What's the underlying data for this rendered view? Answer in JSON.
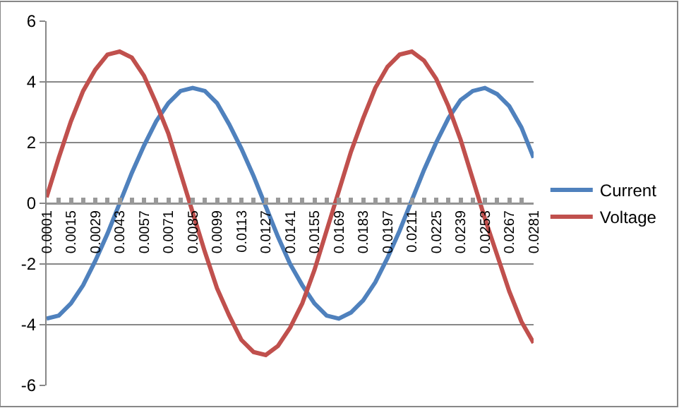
{
  "chart_data": {
    "type": "line",
    "categories": [
      "0.0001",
      null,
      "0.0015",
      null,
      "0.0029",
      null,
      "0.0043",
      null,
      "0.0057",
      null,
      "0.0071",
      null,
      "0.0085",
      null,
      "0.0099",
      null,
      "0.0113",
      null,
      "0.0127",
      null,
      "0.0141",
      null,
      "0.0155",
      null,
      "0.0169",
      null,
      "0.0183",
      null,
      "0.0197",
      null,
      "0.0211",
      null,
      "0.0225",
      null,
      "0.0239",
      null,
      "0.0253",
      null,
      "0.0267",
      null,
      "0.0281"
    ],
    "series": [
      {
        "name": "Current",
        "color": "#4f81bd",
        "values": [
          -3.8,
          -3.7,
          -3.3,
          -2.7,
          -1.9,
          -1.0,
          0.0,
          1.0,
          1.9,
          2.7,
          3.3,
          3.7,
          3.8,
          3.7,
          3.3,
          2.6,
          1.8,
          0.9,
          -0.1,
          -1.1,
          -2.0,
          -2.7,
          -3.3,
          -3.7,
          -3.8,
          -3.6,
          -3.2,
          -2.6,
          -1.8,
          -0.9,
          0.1,
          1.1,
          2.0,
          2.8,
          3.4,
          3.7,
          3.8,
          3.6,
          3.2,
          2.5,
          1.5
        ]
      },
      {
        "name": "Voltage",
        "color": "#c0504d",
        "values": [
          0.2,
          1.5,
          2.7,
          3.7,
          4.4,
          4.9,
          5.0,
          4.8,
          4.2,
          3.3,
          2.3,
          1.0,
          -0.3,
          -1.6,
          -2.8,
          -3.7,
          -4.5,
          -4.9,
          -5.0,
          -4.7,
          -4.1,
          -3.3,
          -2.2,
          -0.9,
          0.4,
          1.7,
          2.8,
          3.8,
          4.5,
          4.9,
          5.0,
          4.7,
          4.1,
          3.2,
          2.1,
          0.8,
          -0.5,
          -1.7,
          -2.9,
          -3.9,
          -4.6
        ]
      }
    ],
    "ylim": [
      -6,
      6
    ],
    "yticks": [
      -6,
      -4,
      -2,
      0,
      2,
      4,
      6
    ],
    "grid": "y",
    "legend": "right",
    "marker": "none",
    "line_style": "solid"
  }
}
